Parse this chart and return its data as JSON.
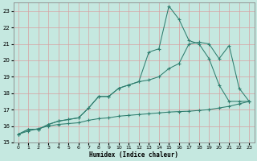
{
  "xlabel": "Humidex (Indice chaleur)",
  "bg_color": "#c5e8e0",
  "grid_color": "#b0d5cc",
  "line_color": "#2e7d6e",
  "xlim": [
    -0.5,
    23.5
  ],
  "ylim": [
    15,
    23.5
  ],
  "xticks": [
    0,
    1,
    2,
    3,
    4,
    5,
    6,
    7,
    8,
    9,
    10,
    11,
    12,
    13,
    14,
    15,
    16,
    17,
    18,
    19,
    20,
    21,
    22,
    23
  ],
  "yticks": [
    15,
    16,
    17,
    18,
    19,
    20,
    21,
    22,
    23
  ],
  "series1_x": [
    0,
    1,
    2,
    3,
    4,
    5,
    6,
    7,
    8,
    9,
    10,
    11,
    12,
    13,
    14,
    15,
    16,
    17,
    18,
    19,
    20,
    21,
    22,
    23
  ],
  "series1_y": [
    15.5,
    15.8,
    15.8,
    16.1,
    16.3,
    16.4,
    16.5,
    17.1,
    17.8,
    17.8,
    18.3,
    18.5,
    18.7,
    20.5,
    20.7,
    23.3,
    22.5,
    21.2,
    21.0,
    20.1,
    18.5,
    17.5,
    17.5,
    17.5
  ],
  "series2_x": [
    0,
    1,
    2,
    3,
    4,
    5,
    6,
    7,
    8,
    9,
    10,
    11,
    12,
    13,
    14,
    15,
    16,
    17,
    18,
    19,
    20,
    21,
    22,
    23
  ],
  "series2_y": [
    15.5,
    15.8,
    15.8,
    16.1,
    16.3,
    16.4,
    16.5,
    17.1,
    17.8,
    17.8,
    18.3,
    18.5,
    18.7,
    18.8,
    19.0,
    19.5,
    19.8,
    21.0,
    21.1,
    21.0,
    20.1,
    20.9,
    18.3,
    17.5
  ],
  "series3_x": [
    0,
    1,
    2,
    3,
    4,
    5,
    6,
    7,
    8,
    9,
    10,
    11,
    12,
    13,
    14,
    15,
    16,
    17,
    18,
    19,
    20,
    21,
    22,
    23
  ],
  "series3_y": [
    15.5,
    15.7,
    15.85,
    16.0,
    16.1,
    16.15,
    16.2,
    16.35,
    16.45,
    16.5,
    16.6,
    16.65,
    16.7,
    16.75,
    16.8,
    16.85,
    16.88,
    16.9,
    16.95,
    17.0,
    17.1,
    17.2,
    17.35,
    17.5
  ]
}
